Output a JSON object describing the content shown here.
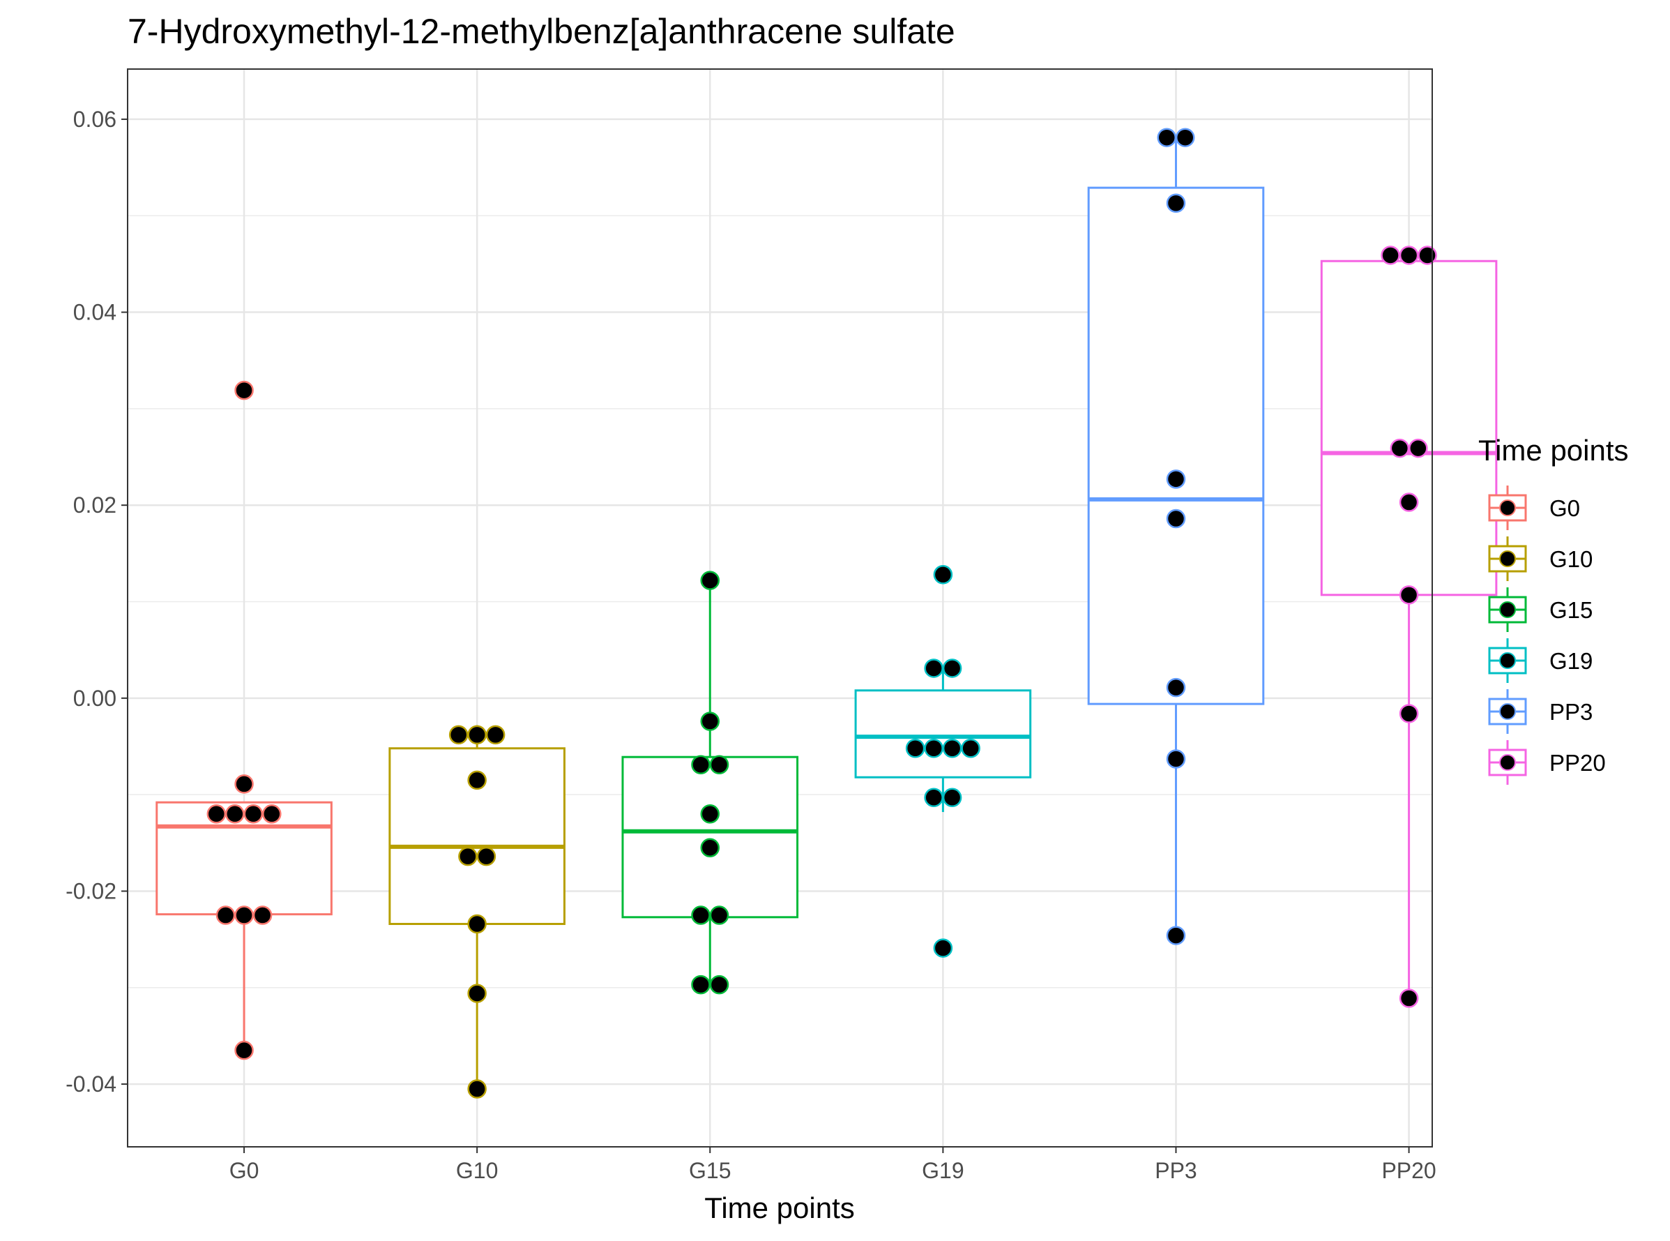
{
  "chart_data": {
    "type": "box",
    "title": "7-Hydroxymethyl-12-methylbenz[a]anthracene sulfate",
    "xlabel": "Time points",
    "ylabel": "",
    "ylim": [
      -0.0465,
      0.0652
    ],
    "yticks": [
      -0.04,
      -0.02,
      0.0,
      0.02,
      0.04,
      0.06
    ],
    "ytick_labels": [
      "-0.04",
      "-0.02",
      "0.00",
      "0.02",
      "0.04",
      "0.06"
    ],
    "grid": true,
    "legend": {
      "title": "Time points",
      "position": "right"
    },
    "categories": [
      "G0",
      "G10",
      "G15",
      "G19",
      "PP3",
      "PP20"
    ],
    "colors": [
      "#F8766D",
      "#B79F00",
      "#00BA38",
      "#00BFC4",
      "#619CFF",
      "#F564E3"
    ],
    "boxes": [
      {
        "name": "G0",
        "whisker_low": -0.0365,
        "q1": -0.0224,
        "median": -0.0133,
        "q3": -0.0108,
        "whisker_high": -0.0108,
        "outliers": [
          0.0319
        ]
      },
      {
        "name": "G10",
        "whisker_low": -0.0405,
        "q1": -0.0234,
        "median": -0.0154,
        "q3": -0.0052,
        "whisker_high": -0.0028,
        "outliers": []
      },
      {
        "name": "G15",
        "whisker_low": -0.0297,
        "q1": -0.0227,
        "median": -0.0138,
        "q3": -0.0061,
        "whisker_high": 0.0122,
        "outliers": []
      },
      {
        "name": "G19",
        "whisker_low": -0.0118,
        "q1": -0.0082,
        "median": -0.004,
        "q3": 0.0008,
        "whisker_high": 0.003,
        "outliers": [
          0.0128,
          -0.0259
        ]
      },
      {
        "name": "PP3",
        "whisker_low": -0.0246,
        "q1": -0.0006,
        "median": 0.0206,
        "q3": 0.0529,
        "whisker_high": 0.0581,
        "outliers": []
      },
      {
        "name": "PP20",
        "whisker_low": -0.0311,
        "q1": 0.0107,
        "median": 0.0254,
        "q3": 0.0453,
        "whisker_high": 0.0459,
        "outliers": []
      }
    ],
    "points": [
      {
        "name": "G0",
        "values": [
          0.0319,
          -0.0089,
          -0.012,
          -0.012,
          -0.012,
          -0.012,
          -0.0225,
          -0.0225,
          -0.0225,
          -0.0365
        ]
      },
      {
        "name": "G10",
        "values": [
          -0.0038,
          -0.0038,
          -0.0038,
          -0.0085,
          -0.0164,
          -0.0164,
          -0.0234,
          -0.0306,
          -0.0405
        ]
      },
      {
        "name": "G15",
        "values": [
          0.0122,
          -0.0024,
          -0.0069,
          -0.0069,
          -0.012,
          -0.0155,
          -0.0225,
          -0.0225,
          -0.0297,
          -0.0297
        ]
      },
      {
        "name": "G19",
        "values": [
          0.0128,
          0.0031,
          0.0031,
          -0.0052,
          -0.0052,
          -0.0052,
          -0.0052,
          -0.0103,
          -0.0103,
          -0.0259
        ]
      },
      {
        "name": "PP3",
        "values": [
          0.0581,
          0.0581,
          0.0513,
          0.0227,
          0.0186,
          0.0011,
          -0.0063,
          -0.0246
        ]
      },
      {
        "name": "PP20",
        "values": [
          0.0459,
          0.0459,
          0.0459,
          0.0259,
          0.0259,
          0.0203,
          0.0107,
          -0.0016,
          -0.0311
        ]
      }
    ]
  }
}
